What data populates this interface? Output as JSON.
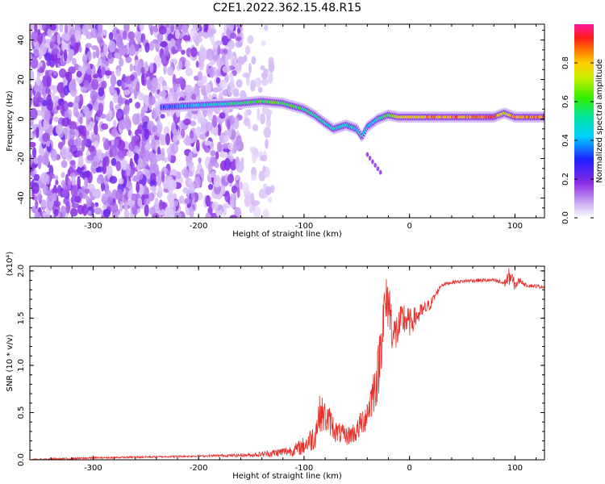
{
  "title": "C2E1.2022.362.15.48.R15",
  "colors": {
    "axis": "#000000",
    "snr_line": "#e8312b",
    "spectrogram_noise": "#8a2be2",
    "spectrogram_band": "#7f00ff"
  },
  "chart_data": [
    {
      "type": "heatmap",
      "title": "C2E1.2022.362.15.48.R15",
      "xlabel": "Height of straight line (km)",
      "ylabel": "Frequency (Hz)",
      "xlim": [
        -360,
        128
      ],
      "ylim": [
        -50,
        48
      ],
      "xticks": [
        -300,
        -200,
        -100,
        0,
        100
      ],
      "yticks": [
        -40,
        -20,
        0,
        20,
        40
      ],
      "colorbar": {
        "label": "Normalized spectral amplitude",
        "range": [
          0.0,
          1.0
        ],
        "ticks": [
          0.0,
          0.2,
          0.4,
          0.6,
          0.8
        ],
        "colormap": "white-violet-blue-cyan-green-yellow-orange-red-magenta"
      },
      "ridge": {
        "x": [
          -235,
          -200,
          -160,
          -140,
          -120,
          -100,
          -90,
          -80,
          -72,
          -60,
          -50,
          -45,
          -40,
          -30,
          -20,
          -10,
          0,
          20,
          40,
          60,
          80,
          90,
          100,
          128
        ],
        "y": [
          6,
          7,
          8,
          9,
          8,
          5,
          2,
          -2,
          -5,
          -3,
          -5,
          -9,
          -4,
          0,
          2,
          1,
          1,
          1,
          1,
          1,
          1,
          3,
          1,
          1
        ],
        "peak_amplitude": [
          0.35,
          0.4,
          0.55,
          0.6,
          0.6,
          0.55,
          0.5,
          0.55,
          0.5,
          0.45,
          0.45,
          0.5,
          0.45,
          0.5,
          0.6,
          0.8,
          0.75,
          0.85,
          0.85,
          0.85,
          0.9,
          0.7,
          0.85,
          0.85
        ]
      },
      "noise_region_xlim": [
        -360,
        -160
      ],
      "sparse_region_xlim": [
        -160,
        -130
      ]
    },
    {
      "type": "line",
      "xlabel": "Height of straight line (km)",
      "ylabel": "SNR (10 * v/v)",
      "y_multiplier": "(x10⁴)",
      "xlim": [
        -360,
        128
      ],
      "ylim": [
        0.0,
        2.05
      ],
      "xticks": [
        -300,
        -200,
        -100,
        0,
        100
      ],
      "yticks": [
        0.0,
        0.5,
        1.0,
        1.5,
        2.0
      ],
      "series": [
        {
          "x": [
            -360,
            -300,
            -250,
            -200,
            -150,
            -130,
            -110,
            -100,
            -90,
            -85,
            -80,
            -75,
            -70,
            -60,
            -50,
            -40,
            -30,
            -25,
            -20,
            -15,
            -10,
            -5,
            0,
            5,
            10,
            20,
            30,
            40,
            60,
            80,
            90,
            95,
            100,
            105,
            110,
            128
          ],
          "y": [
            0.0,
            0.02,
            0.03,
            0.04,
            0.05,
            0.07,
            0.1,
            0.15,
            0.25,
            0.5,
            0.45,
            0.4,
            0.3,
            0.25,
            0.3,
            0.5,
            0.9,
            1.5,
            1.7,
            1.3,
            1.4,
            1.5,
            1.45,
            1.5,
            1.55,
            1.65,
            1.85,
            1.88,
            1.9,
            1.9,
            1.87,
            1.95,
            1.85,
            1.9,
            1.85,
            1.83
          ],
          "noise": [
            0.01,
            0.01,
            0.01,
            0.01,
            0.02,
            0.04,
            0.06,
            0.1,
            0.15,
            0.2,
            0.18,
            0.15,
            0.12,
            0.1,
            0.12,
            0.18,
            0.3,
            0.35,
            0.3,
            0.25,
            0.2,
            0.2,
            0.15,
            0.12,
            0.1,
            0.06,
            0.02,
            0.02,
            0.02,
            0.02,
            0.04,
            0.1,
            0.06,
            0.03,
            0.02,
            0.02
          ]
        }
      ]
    }
  ]
}
